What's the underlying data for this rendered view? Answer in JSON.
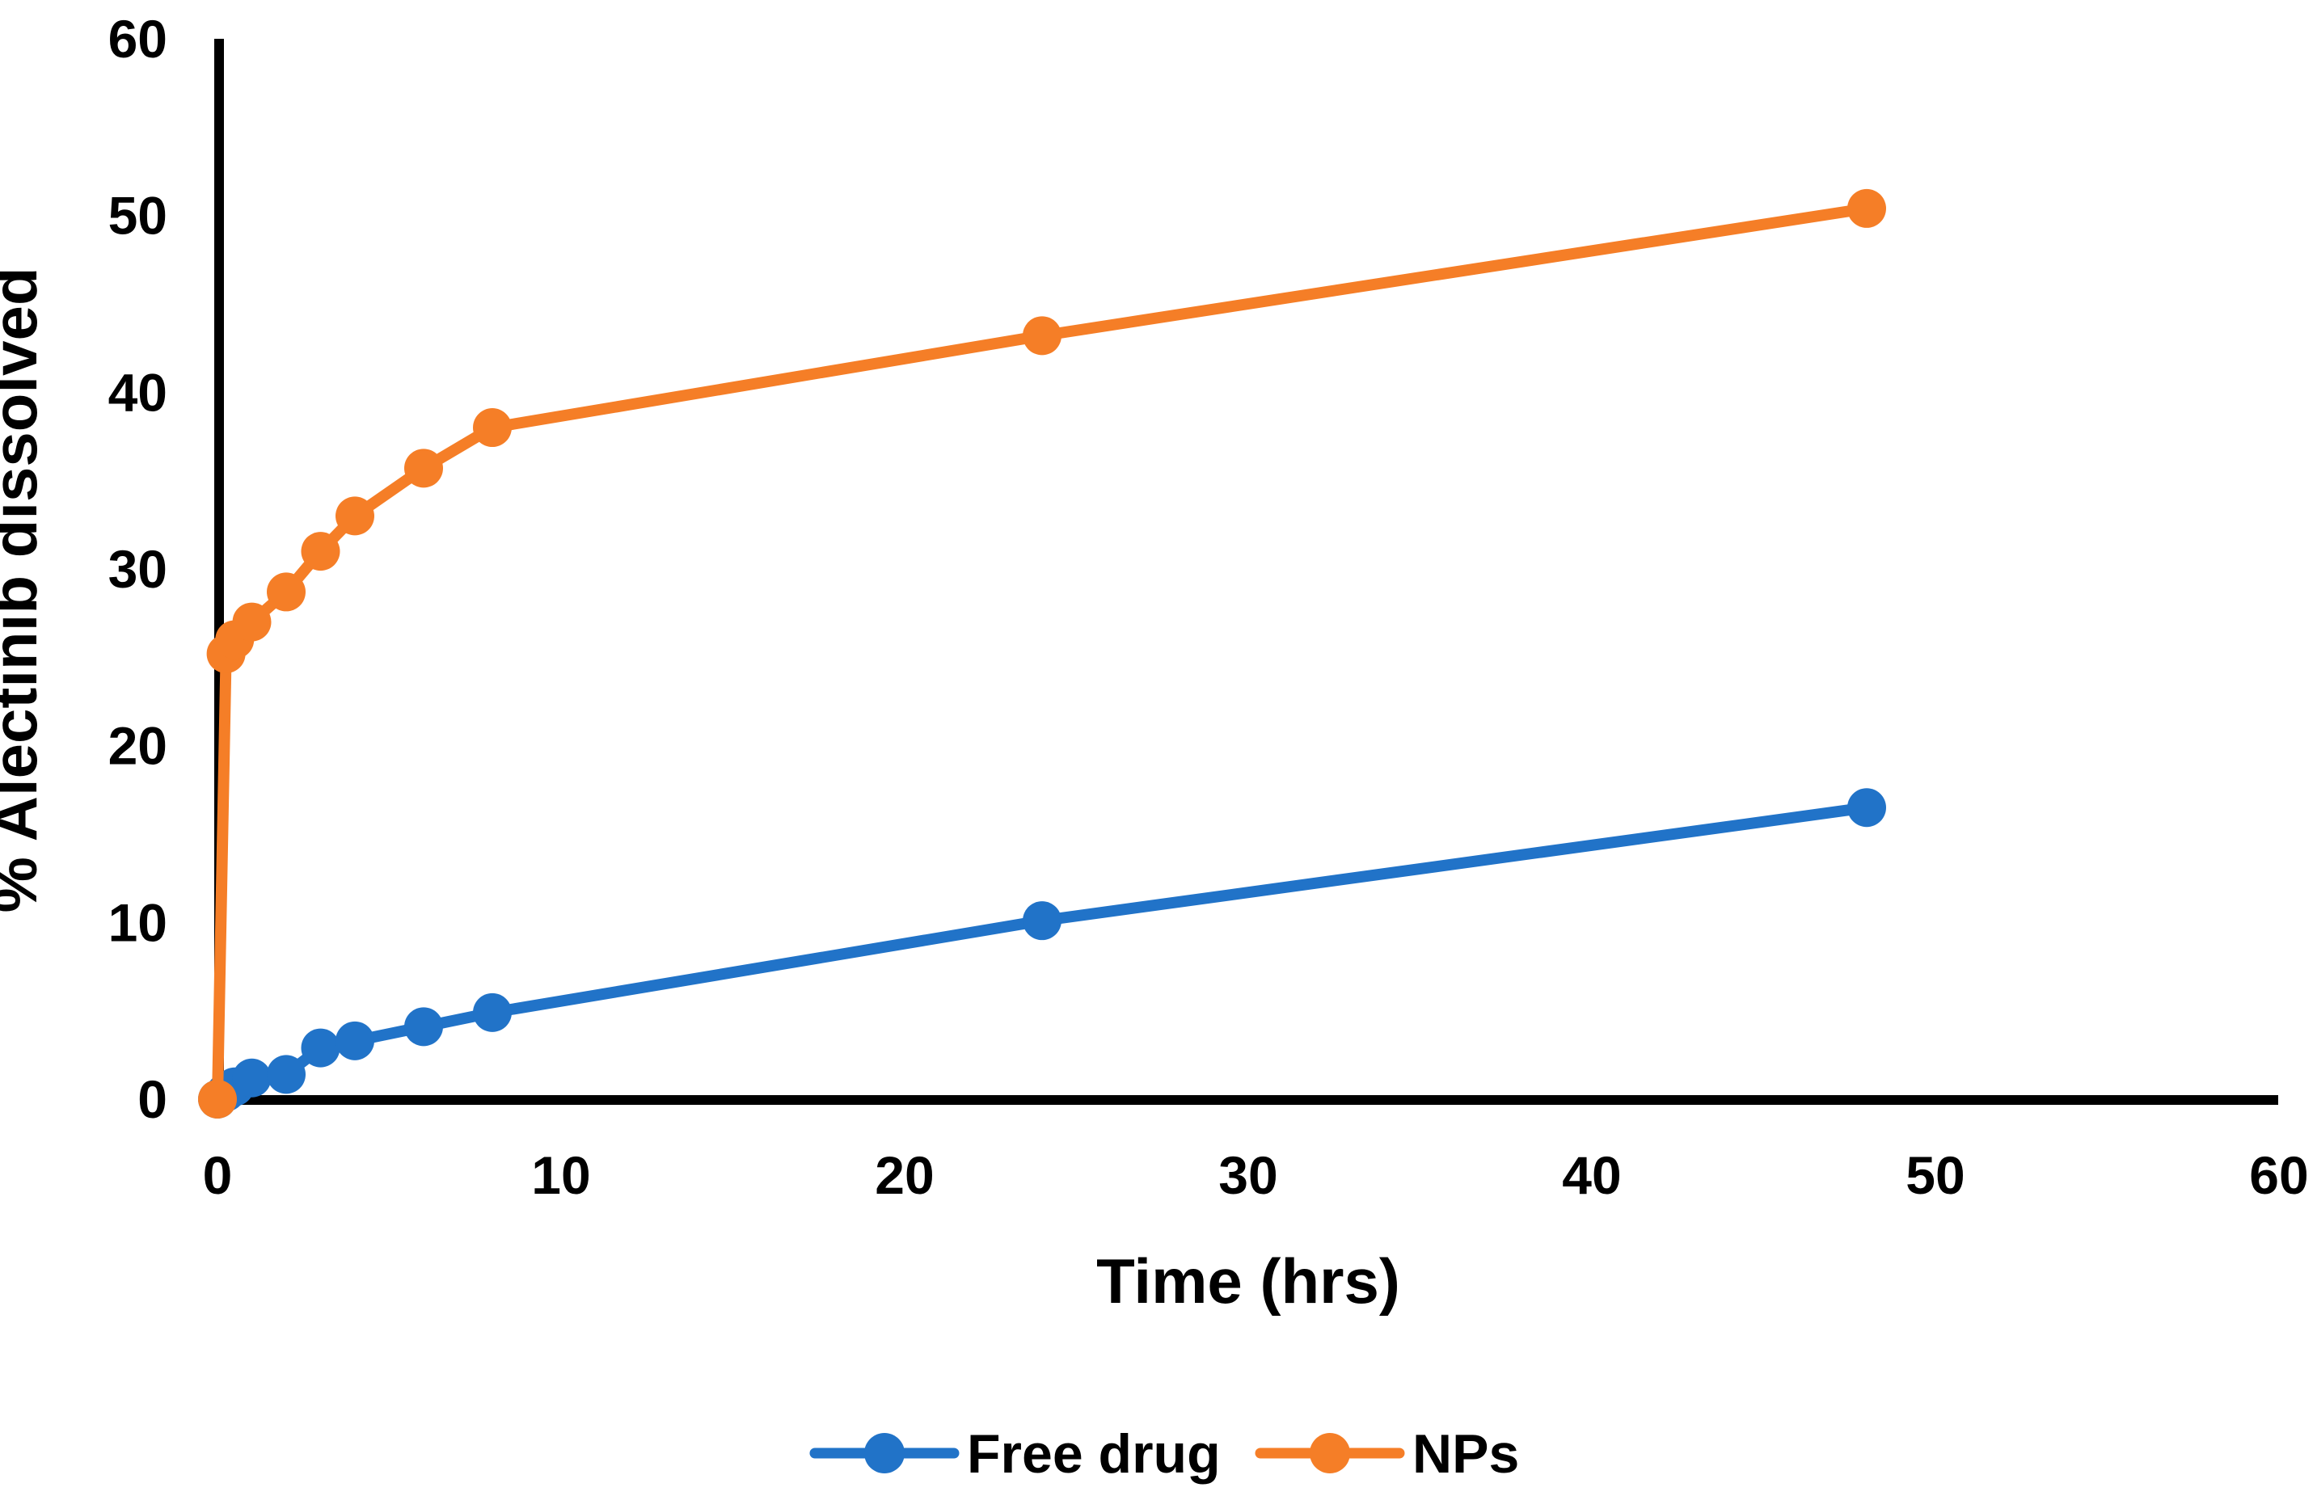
{
  "figure": {
    "background": "#FFFFFF"
  },
  "chart_data": {
    "type": "line",
    "title": "",
    "xlabel": "Time (hrs)",
    "ylabel": "% Alectinib dissolved",
    "xlim": [
      0,
      60
    ],
    "ylim": [
      0,
      60
    ],
    "xticks": [
      0,
      10,
      20,
      30,
      40,
      50,
      60
    ],
    "yticks": [
      0,
      10,
      20,
      30,
      40,
      50,
      60
    ],
    "grid": false,
    "legend_position": "bottom-center",
    "axis_color": "#000000",
    "text_color": "#000000",
    "marker_shape": "circle",
    "x": [
      0,
      0.25,
      0.5,
      1,
      2,
      3,
      4,
      6,
      8,
      24,
      48
    ],
    "series": [
      {
        "name": "Free drug",
        "color": "#2173C8",
        "values": [
          0,
          0.4,
          0.7,
          1.2,
          1.4,
          2.9,
          3.3,
          4.1,
          4.9,
          10.1,
          16.5
        ]
      },
      {
        "name": "NPs",
        "color": "#F57E27",
        "values": [
          0,
          25.2,
          26.0,
          27.0,
          28.7,
          31.0,
          33.0,
          35.7,
          38.0,
          43.2,
          50.4
        ]
      }
    ]
  }
}
